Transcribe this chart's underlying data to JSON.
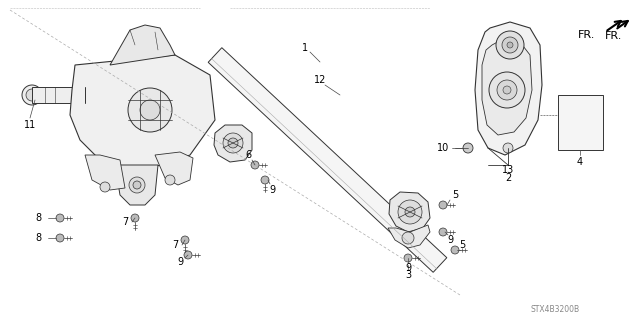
{
  "bg_color": "#ffffff",
  "line_color": "#333333",
  "light_line": "#666666",
  "dashed_color": "#888888",
  "text_color": "#000000",
  "label_fontsize": 7,
  "footer_text": "STX4B3200B",
  "fr_label": "FR.",
  "border_color": "#aaaaaa",
  "lw_main": 0.7,
  "lw_thick": 1.2
}
